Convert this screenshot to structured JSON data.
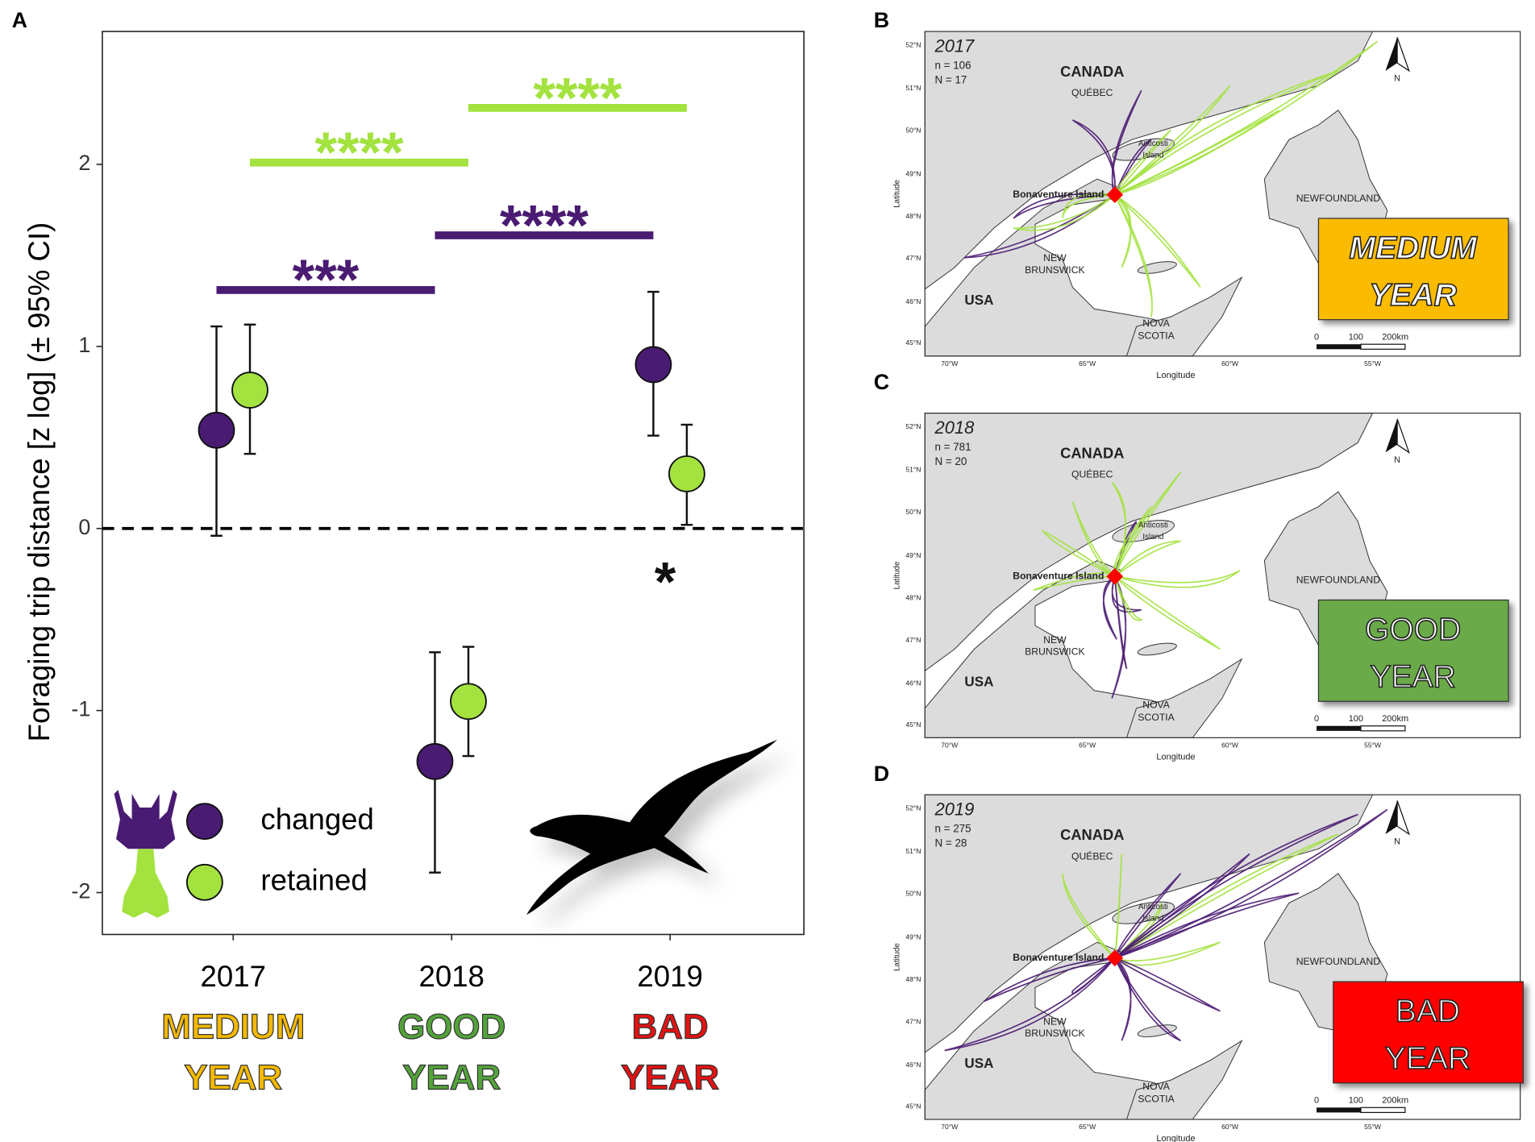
{
  "panel_labels": [
    "A",
    "B",
    "C",
    "D"
  ],
  "chart_data": {
    "type": "scatter",
    "ylabel": "Foraging trip distance [z log] (± 95% CI)",
    "categories": [
      "2017",
      "2018",
      "2019"
    ],
    "category_notes": [
      {
        "lines": [
          "MEDIUM",
          "YEAR"
        ],
        "color": "#f3b800"
      },
      {
        "lines": [
          "GOOD",
          "YEAR"
        ],
        "color": "#53a33b"
      },
      {
        "lines": [
          "BAD",
          "YEAR"
        ],
        "color": "#e31212"
      }
    ],
    "ylim": [
      -2.23,
      2.73
    ],
    "yticks": [
      -2,
      -1,
      0,
      1,
      2
    ],
    "reference_line": 0,
    "legend": "lower left",
    "series": [
      {
        "name": "changed",
        "color": "#4a1b72",
        "values": [
          0.54,
          -1.28,
          0.9
        ],
        "lower": [
          -0.04,
          -1.89,
          0.51
        ],
        "upper": [
          1.11,
          -0.68,
          1.3
        ]
      },
      {
        "name": "retained",
        "color": "#a3e23f",
        "values": [
          0.76,
          -0.95,
          0.3
        ],
        "lower": [
          0.41,
          -1.25,
          0.02
        ],
        "upper": [
          1.12,
          -0.65,
          0.57
        ]
      }
    ],
    "brackets": [
      {
        "series": 0,
        "from": 0,
        "to": 1,
        "y": 1.31,
        "label": "***"
      },
      {
        "series": 0,
        "from": 1,
        "to": 2,
        "y": 1.61,
        "label": "****"
      },
      {
        "series": 1,
        "from": 0,
        "to": 1,
        "y": 2.01,
        "label": "****"
      },
      {
        "series": 1,
        "from": 1,
        "to": 2,
        "y": 2.31,
        "label": "****"
      }
    ],
    "point_annotations": [
      {
        "series": 1,
        "category": 2,
        "y": -0.22,
        "label": "*"
      }
    ]
  },
  "map_labels": {
    "country": "CANADA",
    "province": "QUÉBEC",
    "anticosti": [
      "Anticosti",
      "Island"
    ],
    "colony": "Bonaventure Island",
    "newfoundland": "NEWFOUNDLAND",
    "new_brunswick": [
      "NEW",
      "BRUNSWICK"
    ],
    "usa": "USA",
    "nova_scotia": [
      "NOVA",
      "SCOTIA"
    ],
    "lat_ticks": [
      "52°N",
      "51°N",
      "50°N",
      "49°N",
      "48°N",
      "47°N",
      "46°N",
      "45°N"
    ],
    "lon_ticks": [
      "70°W",
      "65°W",
      "60°W",
      "55°W"
    ],
    "xlabel": "Longitude",
    "ylabel": "Latitude",
    "scale": [
      "0",
      "100",
      "200km"
    ],
    "north": "N"
  },
  "maps": [
    {
      "year": "2017",
      "n": "n = 106",
      "N": "N = 17",
      "badge": [
        "MEDIUM",
        "YEAR"
      ],
      "badge_color": "#fbbb00"
    },
    {
      "year": "2018",
      "n": "n = 781",
      "N": "N = 20",
      "badge": [
        "GOOD",
        "YEAR"
      ],
      "badge_color": "#6aaa48"
    },
    {
      "year": "2019",
      "n": "n = 275",
      "N": "N = 28",
      "badge": [
        "BAD",
        "YEAR"
      ],
      "badge_color": "#ff0000"
    }
  ]
}
